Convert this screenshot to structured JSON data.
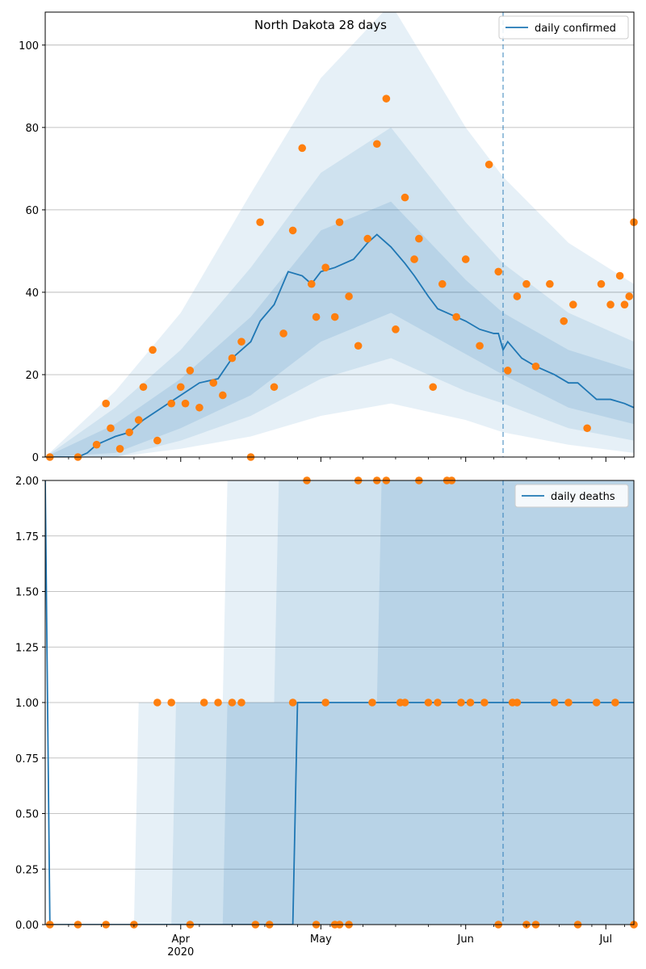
{
  "figure": {
    "title": "North Dakota 28 days"
  },
  "colors": {
    "line": "#1f77b4",
    "points": "#ff7f0e",
    "band": "#1f77b4",
    "grid": "#b0b0b0",
    "divider": "#1f77b4"
  },
  "chart_data": [
    {
      "type": "line",
      "title": "North Dakota 28 days",
      "legend": {
        "label": "daily confirmed",
        "position": "top-right"
      },
      "xlabel": "",
      "ylabel": "",
      "x_range": [
        "2020-03-03",
        "2020-07-07"
      ],
      "ylim": [
        0,
        108
      ],
      "y_ticks": [
        0,
        20,
        40,
        60,
        80,
        100
      ],
      "y_tick_labels": [
        "0",
        "20",
        "40",
        "60",
        "80",
        "100"
      ],
      "grid": "horizontal",
      "forecast_start": "2020-06-09",
      "series": [
        {
          "role": "median",
          "x": [
            "2020-03-03",
            "2020-03-05",
            "2020-03-10",
            "2020-03-12",
            "2020-03-14",
            "2020-03-18",
            "2020-03-21",
            "2020-03-24",
            "2020-03-28",
            "2020-04-01",
            "2020-04-05",
            "2020-04-09",
            "2020-04-12",
            "2020-04-16",
            "2020-04-18",
            "2020-04-21",
            "2020-04-24",
            "2020-04-27",
            "2020-04-29",
            "2020-05-01",
            "2020-05-04",
            "2020-05-06",
            "2020-05-08",
            "2020-05-11",
            "2020-05-13",
            "2020-05-16",
            "2020-05-19",
            "2020-05-21",
            "2020-05-24",
            "2020-05-26",
            "2020-05-28",
            "2020-06-01",
            "2020-06-04",
            "2020-06-07",
            "2020-06-08",
            "2020-06-09",
            "2020-06-10",
            "2020-06-13",
            "2020-06-16",
            "2020-06-20",
            "2020-06-23",
            "2020-06-25",
            "2020-06-27",
            "2020-06-29",
            "2020-07-02",
            "2020-07-05",
            "2020-07-07"
          ],
          "y": [
            0,
            0,
            0,
            1,
            3,
            5,
            6,
            9,
            12,
            15,
            18,
            19,
            24,
            28,
            33,
            37,
            45,
            44,
            42,
            45,
            46,
            47,
            48,
            52,
            54,
            51,
            47,
            44,
            39,
            36,
            35,
            33,
            31,
            30,
            30,
            26,
            28,
            24,
            22,
            20,
            18,
            18,
            16,
            14,
            14,
            13,
            12
          ]
        },
        {
          "role": "quantile-band-50",
          "x": [
            "2020-03-03",
            "2020-03-18",
            "2020-04-01",
            "2020-04-16",
            "2020-05-01",
            "2020-05-16",
            "2020-06-01",
            "2020-06-09",
            "2020-06-23",
            "2020-07-07"
          ],
          "lower": [
            0,
            1,
            7,
            15,
            28,
            35,
            25,
            20,
            12,
            8
          ],
          "upper": [
            0,
            8,
            19,
            34,
            55,
            62,
            43,
            35,
            26,
            21
          ]
        },
        {
          "role": "quantile-band-80",
          "x": [
            "2020-03-03",
            "2020-03-18",
            "2020-04-01",
            "2020-04-16",
            "2020-05-01",
            "2020-05-16",
            "2020-06-01",
            "2020-06-09",
            "2020-06-23",
            "2020-07-07"
          ],
          "lower": [
            0,
            0,
            4,
            10,
            19,
            24,
            16,
            13,
            7,
            4
          ],
          "upper": [
            0,
            12,
            26,
            46,
            69,
            80,
            57,
            47,
            35,
            28
          ]
        },
        {
          "role": "quantile-band-95",
          "x": [
            "2020-03-03",
            "2020-03-18",
            "2020-04-01",
            "2020-04-16",
            "2020-05-01",
            "2020-05-16",
            "2020-06-01",
            "2020-06-09",
            "2020-06-23",
            "2020-07-07"
          ],
          "lower": [
            0,
            0,
            2,
            5,
            10,
            13,
            9,
            6,
            3,
            1
          ],
          "upper": [
            0,
            16,
            35,
            64,
            92,
            110,
            80,
            68,
            52,
            42
          ]
        },
        {
          "role": "observed",
          "x": [
            "2020-03-04",
            "2020-03-10",
            "2020-03-14",
            "2020-03-16",
            "2020-03-17",
            "2020-03-19",
            "2020-03-21",
            "2020-03-23",
            "2020-03-24",
            "2020-03-26",
            "2020-03-27",
            "2020-03-30",
            "2020-04-01",
            "2020-04-02",
            "2020-04-03",
            "2020-04-05",
            "2020-04-08",
            "2020-04-10",
            "2020-04-12",
            "2020-04-14",
            "2020-04-16",
            "2020-04-18",
            "2020-04-21",
            "2020-04-23",
            "2020-04-25",
            "2020-04-27",
            "2020-04-29",
            "2020-04-30",
            "2020-05-02",
            "2020-05-04",
            "2020-05-05",
            "2020-05-07",
            "2020-05-09",
            "2020-05-11",
            "2020-05-13",
            "2020-05-15",
            "2020-05-17",
            "2020-05-19",
            "2020-05-21",
            "2020-05-22",
            "2020-05-25",
            "2020-05-27",
            "2020-05-30",
            "2020-06-01",
            "2020-06-04",
            "2020-06-06",
            "2020-06-08",
            "2020-06-10",
            "2020-06-12",
            "2020-06-14",
            "2020-06-16",
            "2020-06-19",
            "2020-06-22",
            "2020-06-24",
            "2020-06-27",
            "2020-06-30",
            "2020-07-02",
            "2020-07-04",
            "2020-07-05",
            "2020-07-06",
            "2020-07-07"
          ],
          "y": [
            0,
            0,
            3,
            13,
            7,
            2,
            6,
            9,
            17,
            26,
            4,
            13,
            17,
            13,
            21,
            12,
            18,
            15,
            24,
            28,
            0,
            57,
            17,
            30,
            55,
            75,
            42,
            34,
            46,
            34,
            57,
            39,
            27,
            53,
            76,
            87,
            31,
            63,
            48,
            53,
            17,
            42,
            34,
            48,
            27,
            71,
            45,
            21,
            39,
            42,
            22,
            42,
            33,
            37,
            7,
            42,
            37,
            44,
            37,
            39,
            57
          ]
        }
      ]
    },
    {
      "type": "line",
      "title": "",
      "legend": {
        "label": "daily deaths",
        "position": "top-right"
      },
      "xlabel": "",
      "ylabel": "",
      "x_range": [
        "2020-03-03",
        "2020-07-07"
      ],
      "ylim": [
        0,
        2
      ],
      "y_ticks": [
        0,
        0.25,
        0.5,
        0.75,
        1,
        1.25,
        1.5,
        1.75,
        2
      ],
      "y_tick_labels": [
        "0.00",
        "0.25",
        "0.50",
        "0.75",
        "1.00",
        "1.25",
        "1.50",
        "1.75",
        "2.00"
      ],
      "x_ticks": [
        "2020-04-01",
        "2020-05-01",
        "2020-06-01",
        "2020-07-01"
      ],
      "x_tick_labels": [
        "Apr",
        "May",
        "Jun",
        "Jul"
      ],
      "x_tick_year_label": "2020",
      "grid": "horizontal",
      "forecast_start": "2020-06-09",
      "series": [
        {
          "role": "median",
          "x": [
            "2020-03-03",
            "2020-03-04",
            "2020-04-25",
            "2020-04-26",
            "2020-07-07"
          ],
          "y": [
            2,
            0,
            0,
            1,
            1
          ]
        },
        {
          "role": "quantile-band-50",
          "x": [
            "2020-03-03",
            "2020-04-10",
            "2020-04-11",
            "2020-05-13",
            "2020-05-14",
            "2020-07-07"
          ],
          "lower": [
            0,
            0,
            0,
            0,
            0,
            0
          ],
          "upper": [
            0,
            0,
            1,
            1,
            2,
            2
          ]
        },
        {
          "role": "quantile-band-80",
          "x": [
            "2020-03-03",
            "2020-03-30",
            "2020-03-31",
            "2020-04-21",
            "2020-04-22",
            "2020-07-07"
          ],
          "lower": [
            0,
            0,
            0,
            0,
            0,
            0
          ],
          "upper": [
            0,
            0,
            1,
            1,
            2,
            2
          ]
        },
        {
          "role": "quantile-band-95",
          "x": [
            "2020-03-03",
            "2020-03-22",
            "2020-03-23",
            "2020-04-10",
            "2020-04-11",
            "2020-07-07"
          ],
          "lower": [
            0,
            0,
            0,
            0,
            0,
            0
          ],
          "upper": [
            0,
            0,
            1,
            1,
            2,
            2
          ]
        },
        {
          "role": "observed",
          "x": [
            "2020-03-04",
            "2020-03-10",
            "2020-03-16",
            "2020-03-22",
            "2020-03-27",
            "2020-03-30",
            "2020-04-03",
            "2020-04-06",
            "2020-04-09",
            "2020-04-12",
            "2020-04-14",
            "2020-04-17",
            "2020-04-20",
            "2020-04-25",
            "2020-04-28",
            "2020-04-30",
            "2020-05-02",
            "2020-05-04",
            "2020-05-05",
            "2020-05-07",
            "2020-05-09",
            "2020-05-12",
            "2020-05-13",
            "2020-05-15",
            "2020-05-18",
            "2020-05-19",
            "2020-05-22",
            "2020-05-24",
            "2020-05-26",
            "2020-05-28",
            "2020-05-29",
            "2020-05-31",
            "2020-06-02",
            "2020-06-05",
            "2020-06-08",
            "2020-06-11",
            "2020-06-12",
            "2020-06-14",
            "2020-06-16",
            "2020-06-20",
            "2020-06-23",
            "2020-06-25",
            "2020-06-29",
            "2020-07-03",
            "2020-07-07"
          ],
          "y": [
            0,
            0,
            0,
            0,
            1,
            1,
            0,
            1,
            1,
            1,
            1,
            0,
            0,
            1,
            2,
            0,
            1,
            0,
            0,
            0,
            2,
            1,
            2,
            2,
            1,
            1,
            2,
            1,
            1,
            2,
            2,
            1,
            1,
            1,
            0,
            1,
            1,
            0,
            0,
            1,
            1,
            0,
            1,
            1,
            0
          ]
        }
      ]
    }
  ]
}
